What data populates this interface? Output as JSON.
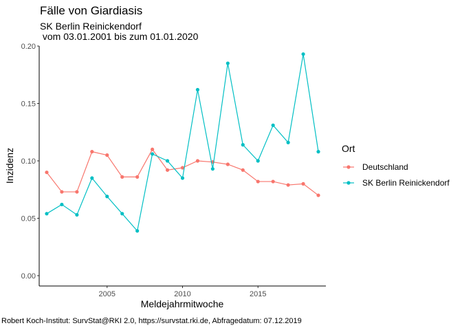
{
  "title": "Fälle von Giardiasis",
  "subtitle_line1": "SK Berlin Reinickendorf",
  "subtitle_line2": " vom 03.01.2001 bis zum 01.01.2020",
  "caption": "Robert Koch-Institut: SurvStat@RKI 2.0, https://survstat.rki.de, Abfragedatum: 07.12.2019",
  "chart_data": {
    "type": "line",
    "xlabel": "Meldejahrmitwoche",
    "ylabel": "Inzidenz",
    "xlim": [
      2000.5,
      2019.5
    ],
    "ylim": [
      -0.009,
      0.2
    ],
    "x_ticks": [
      2005,
      2010,
      2015
    ],
    "y_ticks": [
      0.0,
      0.05,
      0.1,
      0.15,
      0.2
    ],
    "y_tick_labels": [
      "0.00",
      "0.05",
      "0.10",
      "0.15",
      "0.20"
    ],
    "grid": false,
    "legend": {
      "title": "Ort",
      "position": "right"
    },
    "x": [
      2001,
      2002,
      2003,
      2004,
      2005,
      2006,
      2007,
      2008,
      2009,
      2010,
      2011,
      2012,
      2013,
      2014,
      2015,
      2016,
      2017,
      2018,
      2019
    ],
    "series": [
      {
        "name": "Deutschland",
        "color": "#F8766D",
        "values": [
          0.09,
          0.073,
          0.073,
          0.108,
          0.105,
          0.086,
          0.086,
          0.11,
          0.092,
          0.094,
          0.1,
          0.099,
          0.097,
          0.092,
          0.082,
          0.082,
          0.079,
          0.08,
          0.07
        ]
      },
      {
        "name": "SK Berlin Reinickendorf",
        "color": "#00BFC4",
        "values": [
          0.054,
          0.062,
          0.053,
          0.085,
          0.069,
          0.054,
          0.039,
          0.106,
          0.1,
          0.085,
          0.162,
          0.093,
          0.185,
          0.114,
          0.1,
          0.131,
          0.116,
          0.193,
          0.108
        ]
      }
    ]
  }
}
